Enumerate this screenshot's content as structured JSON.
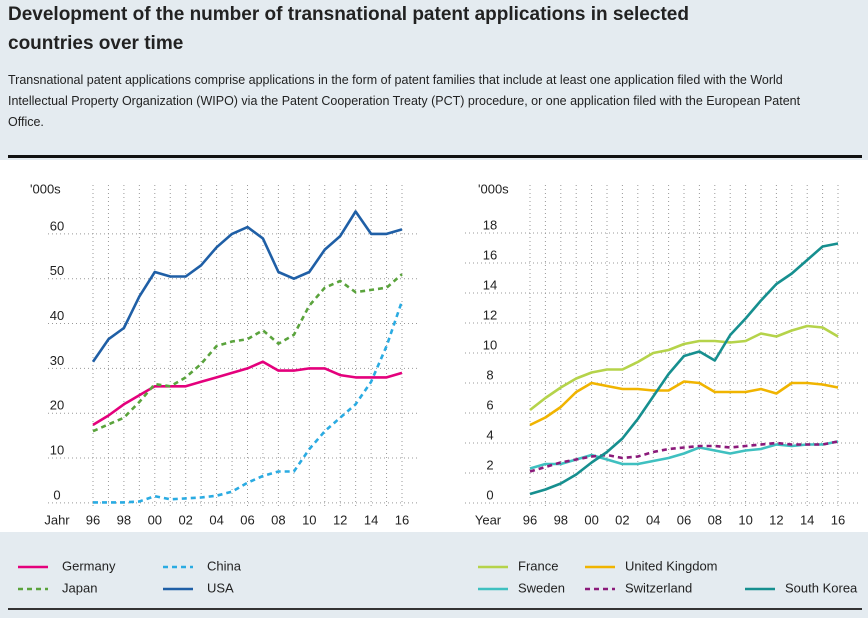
{
  "title": "Development of the number of transnational patent applications in selected countries over time",
  "subtitle": "Transnational patent applications comprise applications in the form of patent families that include at least one application filed with the World Intellectual Property Organization (WIPO) via the Patent Cooperation Treaty (PCT) procedure, or one application filed with the European Patent Office.",
  "chart_data": [
    {
      "type": "line",
      "y_label": "'000s",
      "x_label": "Jahr",
      "categories": [
        "96",
        null,
        "98",
        null,
        "00",
        null,
        "02",
        null,
        "04",
        null,
        "06",
        null,
        "08",
        null,
        "10",
        null,
        "12",
        null,
        "14",
        null,
        "16"
      ],
      "ylim": [
        -2.7,
        70.9
      ],
      "yticks": [
        0,
        10,
        20,
        30,
        40,
        50,
        60
      ],
      "grid": true,
      "series": [
        {
          "name": "Germany",
          "color": "#e4007c",
          "dash": false,
          "values": [
            17.4,
            19.5,
            22,
            24,
            26,
            26,
            26,
            27,
            28,
            29,
            30,
            31.5,
            29.5,
            29.5,
            30,
            30,
            28.5,
            28,
            28,
            28,
            29
          ]
        },
        {
          "name": "Japan",
          "color": "#5aa33c",
          "dash": true,
          "values": [
            16,
            17.5,
            19,
            22.5,
            26.5,
            26,
            28,
            31,
            35,
            36,
            36.5,
            38.5,
            35.5,
            37.5,
            44,
            48,
            49.5,
            47,
            47.5,
            48,
            51
          ]
        },
        {
          "name": "China",
          "color": "#2aabe2",
          "dash": true,
          "values": [
            0.1,
            0.1,
            0.1,
            0.3,
            1.5,
            0.8,
            1,
            1.2,
            1.6,
            2.5,
            4.5,
            6,
            7,
            7,
            12,
            16,
            19,
            22,
            27,
            35,
            45
          ]
        },
        {
          "name": "USA",
          "color": "#1f5fa6",
          "dash": false,
          "values": [
            31.5,
            36.5,
            39,
            46,
            51.5,
            50.5,
            50.5,
            53,
            57,
            60,
            61.5,
            59,
            51.5,
            50,
            51.5,
            56.5,
            59.5,
            65,
            60,
            60,
            61
          ]
        }
      ]
    },
    {
      "type": "line",
      "y_label": "'000s",
      "x_label": "Year",
      "categories": [
        "96",
        null,
        "98",
        null,
        "00",
        null,
        "02",
        null,
        "04",
        null,
        "06",
        null,
        "08",
        null,
        "10",
        null,
        "12",
        null,
        "14",
        null,
        "16"
      ],
      "ylim": [
        -0.8,
        21.2
      ],
      "yticks": [
        0,
        2,
        4,
        6,
        8,
        10,
        12,
        14,
        16,
        18
      ],
      "grid": true,
      "series": [
        {
          "name": "France",
          "color": "#b5d34a",
          "dash": false,
          "values": [
            6.2,
            7,
            7.7,
            8.3,
            8.7,
            8.9,
            8.9,
            9.4,
            10,
            10.2,
            10.6,
            10.8,
            10.8,
            10.7,
            10.8,
            11.3,
            11.1,
            11.5,
            11.8,
            11.7,
            11.1
          ]
        },
        {
          "name": "United Kingdom",
          "color": "#f0b400",
          "dash": false,
          "values": [
            5.2,
            5.7,
            6.4,
            7.4,
            8,
            7.8,
            7.6,
            7.6,
            7.5,
            7.5,
            8.1,
            8,
            7.4,
            7.4,
            7.4,
            7.6,
            7.3,
            8,
            8,
            7.9,
            7.7
          ]
        },
        {
          "name": "Sweden",
          "color": "#3fc0c0",
          "dash": false,
          "values": [
            2.3,
            2.6,
            2.6,
            2.9,
            3.2,
            2.9,
            2.6,
            2.6,
            2.8,
            3,
            3.3,
            3.7,
            3.5,
            3.3,
            3.5,
            3.6,
            3.9,
            3.8,
            3.9,
            3.9,
            4.1
          ]
        },
        {
          "name": "Switzerland",
          "color": "#8b1a7a",
          "dash": true,
          "values": [
            2.1,
            2.4,
            2.7,
            2.9,
            3.1,
            3.2,
            3,
            3.1,
            3.4,
            3.6,
            3.7,
            3.8,
            3.8,
            3.7,
            3.8,
            3.9,
            4,
            3.9,
            3.9,
            3.9,
            4.1
          ]
        },
        {
          "name": "South Korea",
          "color": "#168f8f",
          "dash": false,
          "values": [
            0.6,
            0.9,
            1.3,
            1.9,
            2.7,
            3.4,
            4.3,
            5.6,
            7.1,
            8.6,
            9.8,
            10.1,
            9.5,
            11.2,
            12.3,
            13.5,
            14.6,
            15.3,
            16.2,
            17.1,
            17.3
          ]
        }
      ]
    }
  ]
}
